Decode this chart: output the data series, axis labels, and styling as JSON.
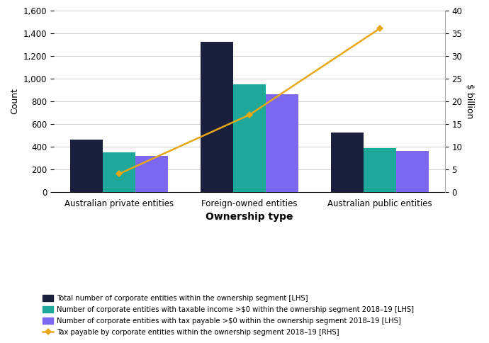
{
  "categories": [
    "Australian private entities",
    "Foreign-owned entities",
    "Australian public entities"
  ],
  "total_entities": [
    464,
    1320,
    527
  ],
  "taxable_income_entities": [
    350,
    950,
    390
  ],
  "tax_payable_entities": [
    320,
    860,
    360
  ],
  "tax_payable_rhs": [
    4.0,
    17.0,
    36.0
  ],
  "bar_colors": {
    "total": "#1a1f3c",
    "taxable": "#1fa89a",
    "payable": "#7b68ee"
  },
  "line_color": "#e6a817",
  "line_marker": "D",
  "xlabel": "Ownership type",
  "ylabel_lhs": "Count",
  "ylabel_rhs": "$ billion",
  "ylim_lhs": [
    0,
    1600
  ],
  "ylim_rhs": [
    0,
    40
  ],
  "yticks_lhs": [
    0,
    200,
    400,
    600,
    800,
    1000,
    1200,
    1400,
    1600
  ],
  "yticks_rhs": [
    0,
    5,
    10,
    15,
    20,
    25,
    30,
    35,
    40
  ],
  "legend_labels": [
    "Total number of corporate entities within the ownership segment [LHS]",
    "Number of corporate entities with taxable income >$0 within the ownership segment 2018–19 [LHS]",
    "Number of corporate entities with tax payable >$0 within the ownership segment 2018–19 [LHS]",
    "Tax payable by corporate entities within the ownership segment 2018–19 [RHS]"
  ],
  "bar_width": 0.25,
  "background_color": "#ffffff",
  "grid_color": "#d0d0d0"
}
